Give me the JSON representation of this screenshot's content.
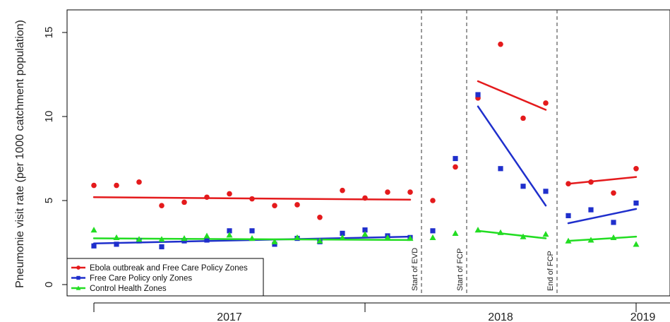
{
  "chart_data": {
    "type": "scatter",
    "ylabel": "Pneumonie visit rate (per 1000 catchment population)",
    "ylim": [
      0,
      16
    ],
    "yticks": [
      0,
      5,
      10,
      15
    ],
    "xlim": [
      0,
      24.4
    ],
    "x_year_labels": [
      {
        "text": "2017",
        "x": 6
      },
      {
        "text": "2018",
        "x": 18
      },
      {
        "text": "2019",
        "x": 24.3
      }
    ],
    "x_major_ticks": [
      0,
      12,
      24
    ],
    "event_lines": [
      {
        "x": 14.5,
        "label": "Start of EVD"
      },
      {
        "x": 16.5,
        "label": "Start of FCP"
      },
      {
        "x": 20.5,
        "label": "End of FCP"
      }
    ],
    "series": [
      {
        "name": "Ebola outbreak and Free Care Policy Zones",
        "color": "#e41a1c",
        "marker": "circle",
        "points": [
          [
            0,
            5.9
          ],
          [
            1,
            5.9
          ],
          [
            2,
            6.1
          ],
          [
            3,
            4.7
          ],
          [
            4,
            4.9
          ],
          [
            5,
            5.2
          ],
          [
            6,
            5.4
          ],
          [
            7,
            5.1
          ],
          [
            8,
            4.7
          ],
          [
            9,
            4.75
          ],
          [
            10,
            4.0
          ],
          [
            11,
            5.6
          ],
          [
            12,
            5.15
          ],
          [
            13,
            5.5
          ],
          [
            14,
            5.5
          ],
          [
            15,
            5.0
          ],
          [
            16,
            7.0
          ],
          [
            17,
            11.1
          ],
          [
            18,
            14.3
          ],
          [
            19,
            9.9
          ],
          [
            20,
            10.8
          ],
          [
            21,
            6.0
          ],
          [
            22,
            6.1
          ],
          [
            23,
            5.45
          ],
          [
            24,
            6.9
          ]
        ],
        "trends": [
          [
            [
              0,
              5.2
            ],
            [
              14,
              5.05
            ]
          ],
          [
            [
              17,
              12.1
            ],
            [
              20,
              10.4
            ]
          ],
          [
            [
              21,
              6.0
            ],
            [
              24,
              6.4
            ]
          ]
        ]
      },
      {
        "name": "Free Care Policy only Zones",
        "color": "#1f2fcc",
        "marker": "square",
        "points": [
          [
            0,
            2.3
          ],
          [
            1,
            2.4
          ],
          [
            2,
            2.6
          ],
          [
            3,
            2.25
          ],
          [
            4,
            2.6
          ],
          [
            5,
            2.65
          ],
          [
            6,
            3.2
          ],
          [
            7,
            3.2
          ],
          [
            8,
            2.4
          ],
          [
            9,
            2.75
          ],
          [
            10,
            2.55
          ],
          [
            11,
            3.05
          ],
          [
            12,
            3.25
          ],
          [
            13,
            2.9
          ],
          [
            14,
            2.8
          ],
          [
            15,
            3.2
          ],
          [
            16,
            7.5
          ],
          [
            17,
            11.3
          ],
          [
            18,
            6.9
          ],
          [
            19,
            5.85
          ],
          [
            20,
            5.55
          ],
          [
            21,
            4.1
          ],
          [
            22,
            4.45
          ],
          [
            23,
            3.7
          ],
          [
            24,
            4.85
          ]
        ],
        "trends": [
          [
            [
              0,
              2.45
            ],
            [
              14,
              2.85
            ]
          ],
          [
            [
              17,
              10.6
            ],
            [
              20,
              4.7
            ]
          ],
          [
            [
              21,
              3.65
            ],
            [
              24,
              4.5
            ]
          ]
        ]
      },
      {
        "name": "Control Health Zones",
        "color": "#22dd22",
        "marker": "triangle",
        "points": [
          [
            0,
            3.25
          ],
          [
            1,
            2.8
          ],
          [
            2,
            2.7
          ],
          [
            3,
            2.7
          ],
          [
            4,
            2.75
          ],
          [
            5,
            2.9
          ],
          [
            6,
            2.95
          ],
          [
            7,
            2.75
          ],
          [
            8,
            2.55
          ],
          [
            9,
            2.8
          ],
          [
            10,
            2.6
          ],
          [
            11,
            2.8
          ],
          [
            12,
            3.0
          ],
          [
            13,
            2.8
          ],
          [
            14,
            2.75
          ],
          [
            15,
            2.8
          ],
          [
            16,
            3.05
          ],
          [
            17,
            3.25
          ],
          [
            18,
            3.1
          ],
          [
            19,
            2.85
          ],
          [
            20,
            3.0
          ],
          [
            21,
            2.6
          ],
          [
            22,
            2.65
          ],
          [
            23,
            2.8
          ],
          [
            24,
            2.4
          ]
        ],
        "trends": [
          [
            [
              0,
              2.75
            ],
            [
              14,
              2.65
            ]
          ],
          [
            [
              17,
              3.2
            ],
            [
              20,
              2.75
            ]
          ],
          [
            [
              21,
              2.6
            ],
            [
              24,
              2.85
            ]
          ]
        ]
      }
    ],
    "legend": {
      "position": "bottom-left"
    },
    "grid": false
  }
}
